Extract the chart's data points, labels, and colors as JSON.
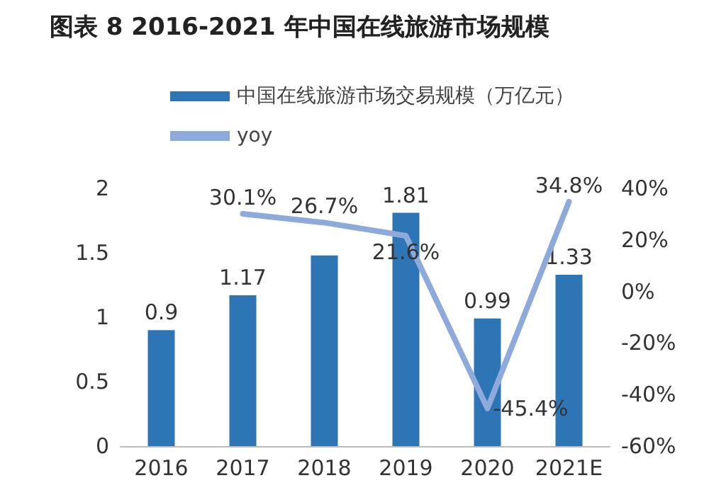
{
  "chart_data": {
    "type": "bar",
    "title": "图表 8 2016-2021 年中国在线旅游市场规模",
    "categories": [
      "2016",
      "2017",
      "2018",
      "2019",
      "2020",
      "2021E"
    ],
    "series": [
      {
        "name": "中国在线旅游市场交易规模（万亿元）",
        "color": "#2e75b6",
        "values": [
          0.9,
          1.17,
          1.48,
          1.81,
          0.99,
          1.33
        ],
        "value_labels": [
          "0.9",
          "1.17",
          null,
          "1.81",
          "0.99",
          "1.33"
        ]
      },
      {
        "name": "yoy",
        "type": "line",
        "axis": "y2",
        "color": "#8eaadb",
        "values": [
          null,
          30.1,
          26.7,
          21.6,
          -45.4,
          34.8
        ],
        "value_labels": [
          null,
          "30.1%",
          "26.7%",
          "21.6%",
          "-45.4%",
          "34.8%"
        ]
      }
    ],
    "ylim": [
      0,
      2
    ],
    "yticks": [
      0,
      0.5,
      1,
      1.5,
      2
    ],
    "y2lim": [
      -60,
      40
    ],
    "y2ticks": [
      {
        "value": -60,
        "label": "-60%"
      },
      {
        "value": -40,
        "label": "-40%"
      },
      {
        "value": -20,
        "label": "-20%"
      },
      {
        "value": 0,
        "label": "0%"
      },
      {
        "value": 20,
        "label": "20%"
      },
      {
        "value": 40,
        "label": "40%"
      }
    ],
    "grid": false,
    "legend": "top left",
    "marker": "none",
    "line_style": "solid"
  }
}
